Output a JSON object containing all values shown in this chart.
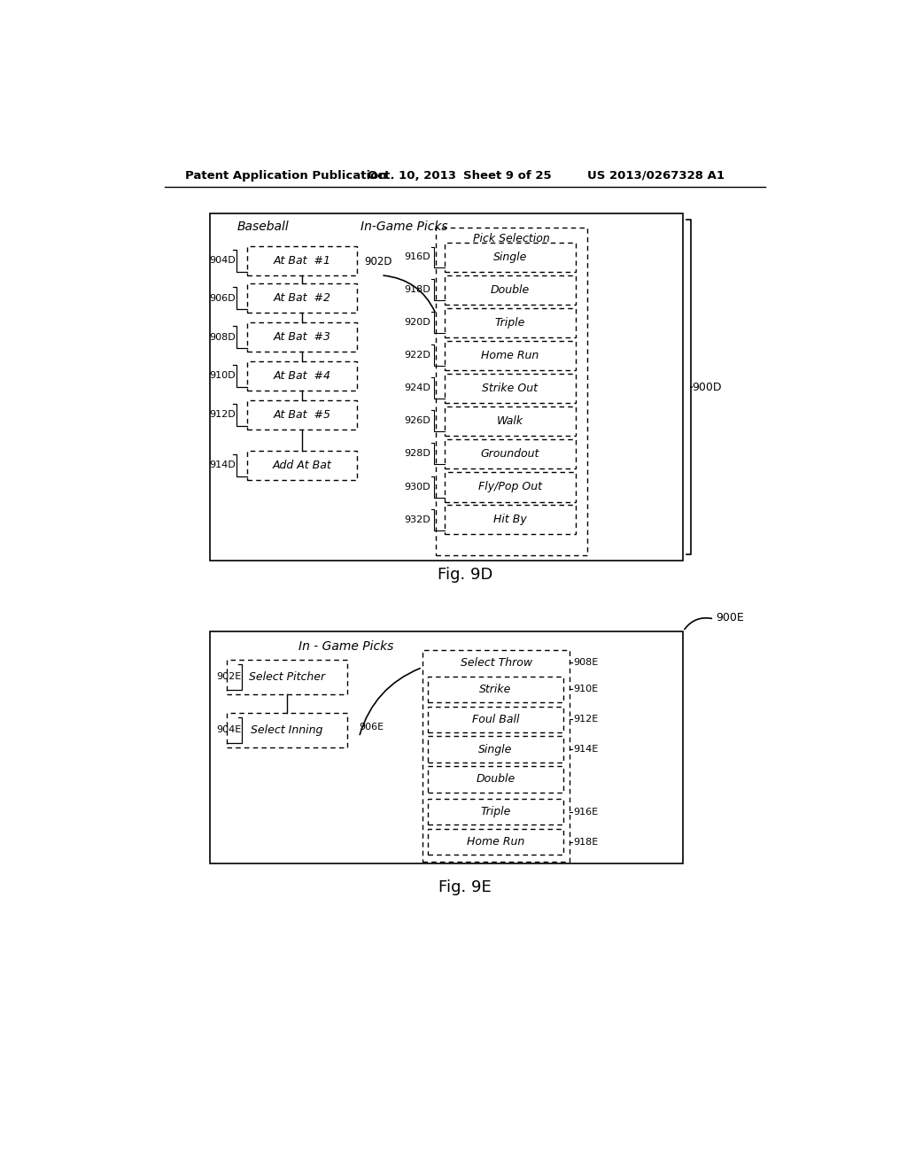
{
  "bg_color": "#ffffff",
  "header_text": "Patent Application Publication",
  "header_date": "Oct. 10, 2013",
  "header_sheet": "Sheet 9 of 25",
  "header_patent": "US 2013/0267328 A1",
  "fig9d_label": "Fig. 9D",
  "fig9e_label": "Fig. 9E",
  "fig9d": {
    "outer_label": "900D",
    "title_baseball": "Baseball",
    "title_ingame": "In-Game Picks",
    "title_pick": "Pick Selection",
    "connector_label": "902D",
    "left_box_labels": [
      "904D",
      "906D",
      "908D",
      "910D",
      "912D",
      "914D"
    ],
    "left_box_texts": [
      "At Bat  #1",
      "At Bat  #2",
      "At Bat  #3",
      "At Bat  #4",
      "At Bat  #5",
      "Add At Bat"
    ],
    "right_box_labels": [
      "916D",
      "918D",
      "920D",
      "922D",
      "924D",
      "926D",
      "928D",
      "930D",
      "932D"
    ],
    "right_box_texts": [
      "Single",
      "Double",
      "Triple",
      "Home Run",
      "Strike Out",
      "Walk",
      "Groundout",
      "Fly/Pop Out",
      "Hit By"
    ]
  },
  "fig9e": {
    "outer_label": "900E",
    "title_ingame": "In - Game Picks",
    "left_box_labels": [
      "902E",
      "904E"
    ],
    "left_box_texts": [
      "Select Pitcher",
      "Select Inning"
    ],
    "connector_label": "906E",
    "right_title": "Select Throw",
    "right_title_label": "908E",
    "right_box_labels": [
      "910E",
      "912E",
      "914E",
      "",
      "916E",
      "918E"
    ],
    "right_box_texts": [
      "Strike",
      "Foul Ball",
      "Single",
      "Double",
      "Triple",
      "Home Run"
    ]
  }
}
